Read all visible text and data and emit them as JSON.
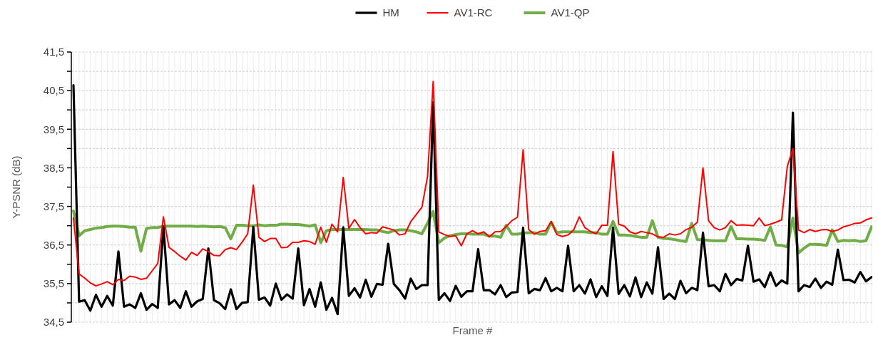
{
  "chart_data": {
    "type": "line",
    "xlabel": "Frame #",
    "ylabel": "Y-PSNR (dB)",
    "legend": "top",
    "grid": true,
    "line_style": "solid",
    "marker": "none",
    "categories": [
      null,
      null,
      null,
      null,
      null,
      null,
      null,
      null,
      null,
      null,
      null,
      null,
      null,
      null,
      null,
      null,
      null,
      null,
      null,
      null,
      null,
      null,
      null,
      null,
      null,
      null,
      null,
      null,
      null,
      null,
      null,
      null,
      null,
      null,
      null,
      null,
      null,
      null,
      null,
      null,
      null,
      null,
      null,
      null,
      null,
      null,
      null,
      null,
      null,
      null,
      null,
      null,
      null,
      null,
      null,
      null,
      null,
      null,
      null,
      null,
      null,
      null,
      null,
      null,
      null,
      null,
      null,
      null,
      null,
      null,
      null,
      null,
      null,
      null,
      null,
      null,
      null,
      null,
      null,
      null,
      null,
      null,
      null,
      null,
      null,
      null,
      null,
      null,
      null,
      null,
      null,
      null,
      null,
      null,
      null,
      null,
      null,
      null,
      null,
      null,
      null,
      null,
      null,
      null,
      null,
      null,
      null,
      null,
      null,
      null,
      null,
      null,
      null,
      null,
      null,
      null,
      null,
      null,
      null,
      null,
      null,
      null,
      null,
      null,
      null,
      null,
      null,
      null,
      null,
      null,
      null,
      null,
      null,
      null,
      null,
      null,
      null,
      null,
      null,
      null,
      null,
      null,
      null
    ],
    "ylim": [
      34.5,
      41.5
    ],
    "yticks": [
      {
        "value": 34.5,
        "label": "34,5"
      },
      {
        "value": 35,
        "label": null
      },
      {
        "value": 35.5,
        "label": "35,5"
      },
      {
        "value": 36,
        "label": null
      },
      {
        "value": 36.5,
        "label": "36,5"
      },
      {
        "value": 37,
        "label": null
      },
      {
        "value": 37.5,
        "label": "37,5"
      },
      {
        "value": 38,
        "label": null
      },
      {
        "value": 38.5,
        "label": "38,5"
      },
      {
        "value": 39,
        "label": null
      },
      {
        "value": 39.5,
        "label": "39,5"
      },
      {
        "value": 40,
        "label": null
      },
      {
        "value": 40.5,
        "label": "40,5"
      },
      {
        "value": 41,
        "label": null
      },
      {
        "value": 41.5,
        "label": "41,5"
      }
    ],
    "series": [
      {
        "name": "HM",
        "color": "#000000",
        "values": [
          40.64,
          35.03,
          35.07,
          34.8,
          35.21,
          34.9,
          35.18,
          34.93,
          36.33,
          34.9,
          34.96,
          34.87,
          35.25,
          34.82,
          34.97,
          34.87,
          36.98,
          34.96,
          35.07,
          34.87,
          35.3,
          34.9,
          35.04,
          35.1,
          36.41,
          35.07,
          34.99,
          34.84,
          35.35,
          34.84,
          35.0,
          35.02,
          36.97,
          35.08,
          35.14,
          34.93,
          35.5,
          35.08,
          35.22,
          35.11,
          36.41,
          34.94,
          35.36,
          34.9,
          35.53,
          34.82,
          35.13,
          34.71,
          36.96,
          35.18,
          35.38,
          35.14,
          35.6,
          35.16,
          35.49,
          35.47,
          36.53,
          35.49,
          35.33,
          35.11,
          35.63,
          35.36,
          35.46,
          35.46,
          40.2,
          35.08,
          35.25,
          35.05,
          35.44,
          35.16,
          35.3,
          35.3,
          36.39,
          35.33,
          35.33,
          35.22,
          35.46,
          35.15,
          35.27,
          35.28,
          36.95,
          35.25,
          35.36,
          35.33,
          35.64,
          35.3,
          35.39,
          35.3,
          36.48,
          35.3,
          35.46,
          35.24,
          35.61,
          35.15,
          35.43,
          35.18,
          36.95,
          35.23,
          35.46,
          35.17,
          35.66,
          35.15,
          35.53,
          35.24,
          36.44,
          35.1,
          35.24,
          35.1,
          35.57,
          35.25,
          35.39,
          35.33,
          36.82,
          35.43,
          35.46,
          35.3,
          35.75,
          35.46,
          35.62,
          35.58,
          36.48,
          35.55,
          35.61,
          35.41,
          35.79,
          35.44,
          35.58,
          35.5,
          39.93,
          35.3,
          35.46,
          35.41,
          35.63,
          35.39,
          35.55,
          35.47,
          36.38,
          35.59,
          35.6,
          35.53,
          35.8,
          35.56,
          35.67
        ]
      },
      {
        "name": "AV1-RC",
        "color": "#ff0000",
        "values": [
          37.2,
          35.75,
          35.64,
          35.52,
          35.44,
          35.49,
          35.55,
          35.47,
          35.61,
          35.58,
          35.69,
          35.67,
          35.61,
          35.64,
          35.83,
          36.02,
          37.23,
          36.44,
          36.33,
          36.21,
          36.11,
          36.31,
          36.23,
          36.4,
          36.33,
          36.23,
          36.22,
          36.38,
          36.43,
          36.38,
          36.57,
          36.79,
          38.05,
          36.7,
          36.59,
          36.67,
          36.67,
          36.43,
          36.44,
          36.57,
          36.57,
          36.61,
          36.59,
          36.52,
          36.96,
          36.57,
          37.04,
          36.84,
          38.25,
          36.93,
          37.16,
          36.95,
          36.79,
          36.82,
          36.81,
          36.97,
          36.93,
          36.89,
          36.76,
          36.79,
          37.1,
          37.29,
          37.48,
          38.28,
          40.74,
          36.84,
          36.77,
          36.72,
          36.74,
          36.48,
          36.79,
          36.87,
          36.79,
          36.84,
          36.71,
          36.84,
          36.85,
          36.98,
          37.13,
          37.22,
          38.97,
          36.9,
          36.78,
          36.85,
          36.87,
          37.11,
          36.77,
          36.72,
          36.76,
          36.89,
          37.23,
          36.95,
          36.85,
          36.79,
          37.01,
          37.01,
          38.92,
          37.04,
          36.99,
          36.84,
          36.79,
          36.85,
          36.82,
          36.79,
          36.71,
          36.7,
          36.79,
          36.76,
          36.79,
          36.9,
          36.96,
          37.09,
          38.5,
          37.13,
          36.95,
          36.89,
          36.95,
          37.13,
          37.01,
          37.02,
          37.01,
          37.0,
          37.2,
          37.0,
          37.04,
          37.09,
          37.15,
          38.53,
          39.0,
          36.89,
          36.82,
          36.9,
          36.85,
          36.89,
          36.9,
          36.85,
          36.89,
          36.97,
          37.01,
          37.06,
          37.07,
          37.15,
          37.2
        ]
      },
      {
        "name": "AV1-QP",
        "color": "#70ad47",
        "values": [
          37.38,
          36.74,
          36.87,
          36.9,
          36.94,
          36.95,
          36.98,
          36.99,
          36.99,
          36.98,
          36.96,
          36.96,
          36.34,
          36.93,
          36.95,
          36.95,
          36.99,
          36.99,
          36.99,
          36.99,
          36.99,
          36.99,
          36.98,
          36.99,
          36.98,
          36.97,
          36.98,
          36.95,
          36.66,
          37.01,
          37.01,
          37.0,
          37.0,
          37.02,
          37.0,
          37.01,
          37.01,
          37.04,
          37.04,
          37.03,
          37.03,
          37.01,
          36.99,
          37.02,
          36.56,
          36.87,
          36.9,
          36.9,
          36.9,
          36.9,
          36.9,
          36.9,
          36.9,
          36.89,
          36.89,
          36.85,
          36.82,
          36.87,
          36.89,
          36.89,
          36.87,
          36.84,
          36.79,
          37.07,
          37.37,
          36.56,
          36.68,
          36.74,
          36.77,
          36.79,
          36.79,
          36.78,
          36.78,
          36.78,
          36.73,
          36.73,
          36.7,
          37.01,
          36.78,
          36.78,
          36.81,
          36.82,
          36.82,
          36.78,
          36.78,
          37.09,
          36.82,
          36.84,
          36.84,
          36.84,
          36.84,
          36.84,
          36.82,
          36.82,
          36.78,
          36.78,
          37.11,
          36.76,
          36.76,
          36.75,
          36.72,
          36.7,
          36.7,
          37.13,
          36.7,
          36.67,
          36.66,
          36.64,
          36.61,
          36.59,
          37.06,
          36.64,
          36.64,
          36.62,
          36.61,
          36.61,
          36.61,
          36.98,
          36.66,
          36.66,
          36.65,
          36.65,
          36.64,
          36.62,
          36.97,
          36.5,
          36.49,
          36.45,
          37.2,
          36.29,
          36.42,
          36.52,
          36.52,
          36.51,
          36.49,
          36.89,
          36.59,
          36.62,
          36.61,
          36.62,
          36.59,
          36.61,
          36.97
        ]
      }
    ]
  }
}
